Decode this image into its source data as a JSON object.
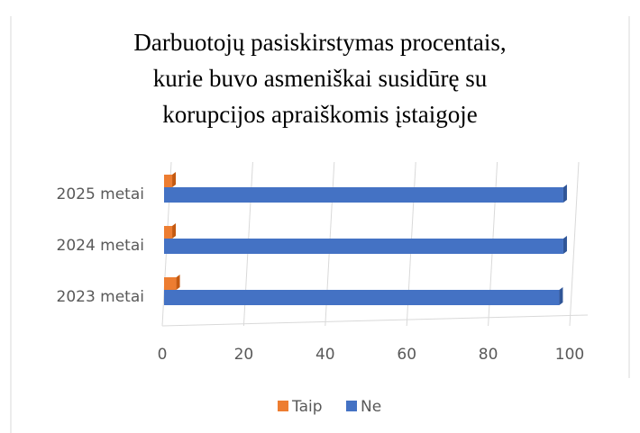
{
  "chart_data": {
    "type": "bar",
    "orientation": "horizontal",
    "title": "Darbuotojų pasiskirstymas procentais,\nkurie buvo asmeniškai susidūrę su\nkorupcijos apraiškomis įstaigoje",
    "categories": [
      "2023 metai",
      "2024 metai",
      "2025 metai"
    ],
    "series": [
      {
        "name": "Taip",
        "color": "#ed7d31",
        "values": [
          3,
          2,
          2
        ]
      },
      {
        "name": "Ne",
        "color": "#4472c4",
        "values": [
          97,
          98,
          98
        ]
      }
    ],
    "xlim": [
      0,
      100
    ],
    "xticks": [
      0,
      20,
      40,
      60,
      80,
      100
    ],
    "grid": true,
    "legend": "bottom"
  }
}
